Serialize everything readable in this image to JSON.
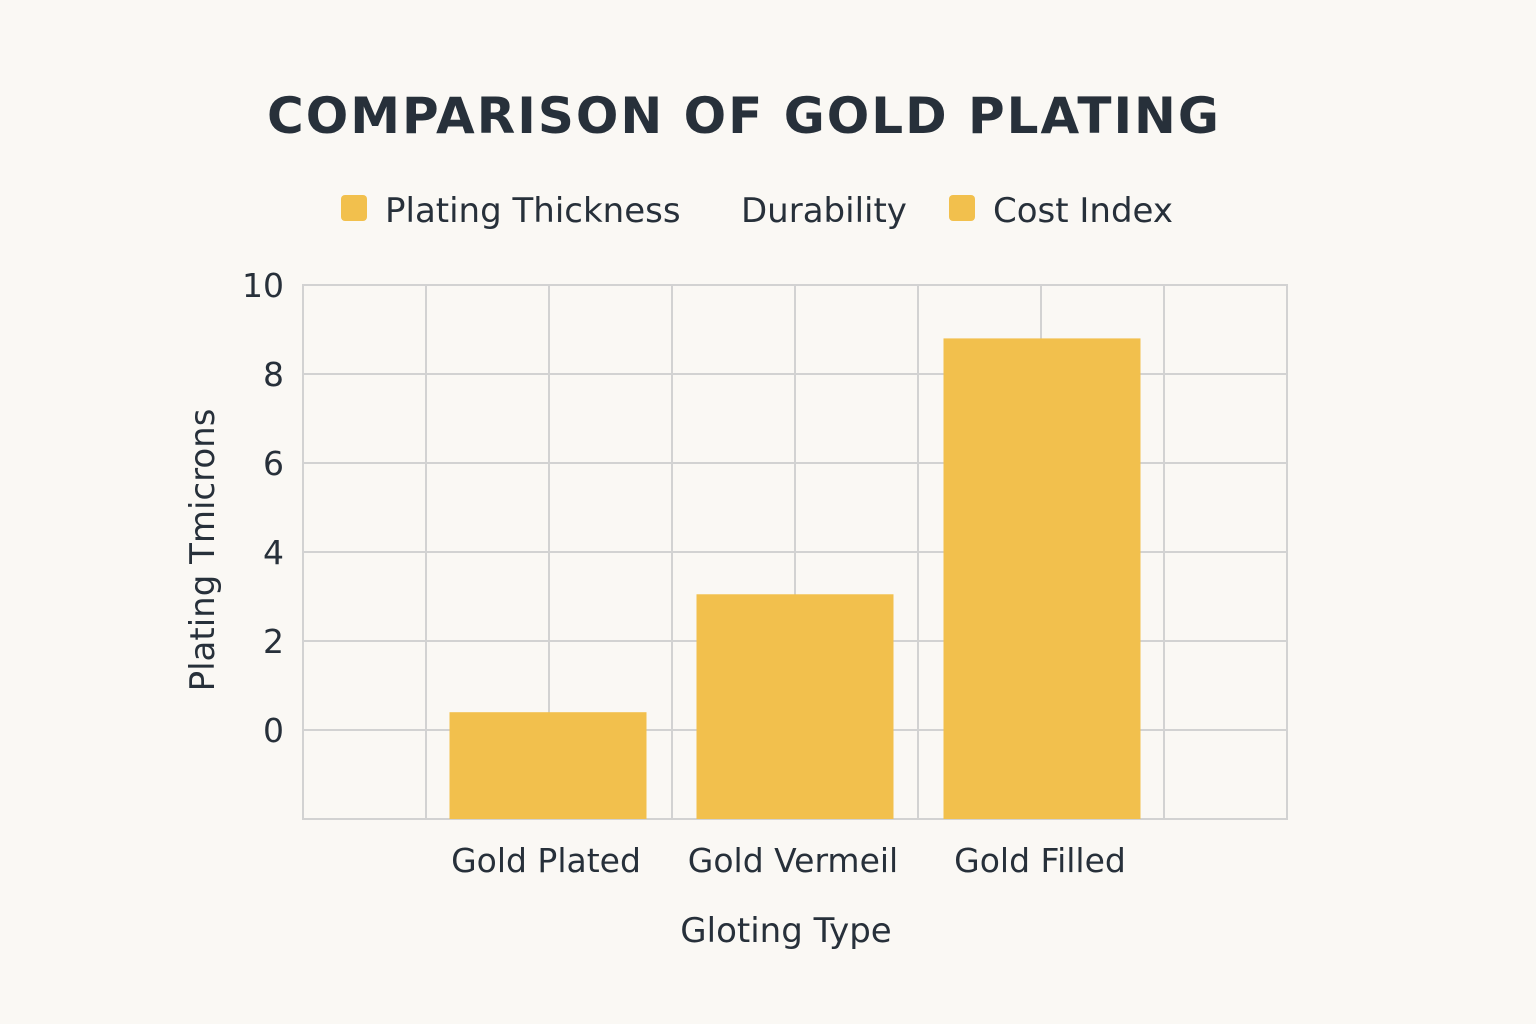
{
  "chart_data": {
    "type": "bar",
    "title": "COMPARISON OF GOLD PLATING",
    "xlabel": "Gloting Type",
    "ylabel": "Plating Tmicrons",
    "categories": [
      "Gold Plated",
      "Gold Vermeil",
      "Gold Filled"
    ],
    "series": [
      {
        "name": "Plating Thickness",
        "values": [
          0.4,
          3.05,
          8.8
        ]
      }
    ],
    "legend": {
      "placement": "top",
      "entries": [
        {
          "label": "Plating Thickness",
          "swatch": true
        },
        {
          "label": "Durability",
          "swatch": false
        },
        {
          "label": "Cost Index",
          "swatch": true
        }
      ]
    },
    "yticks": [
      0,
      2,
      4,
      6,
      8,
      10
    ],
    "ylim": [
      -2,
      10
    ],
    "grid": true,
    "colors": {
      "bar": "#f2c04d",
      "text": "#27303a",
      "grid": "#d2d2d2",
      "background": "#faf8f4"
    }
  }
}
